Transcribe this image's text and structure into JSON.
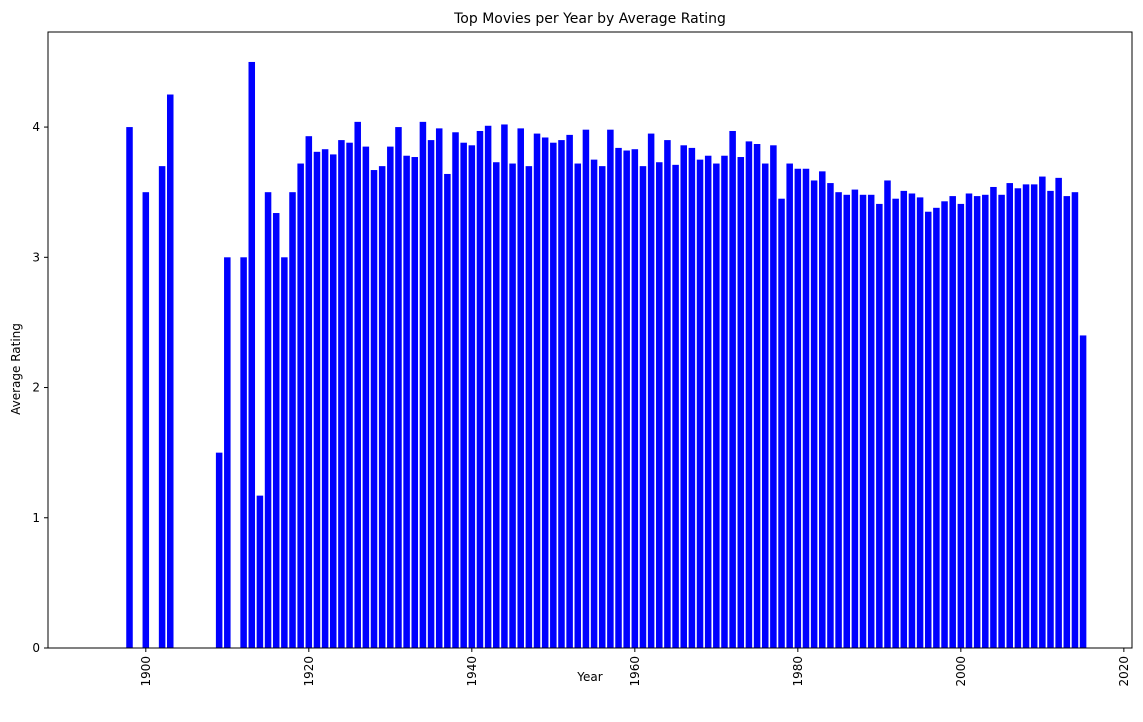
{
  "chart_data": {
    "type": "bar",
    "title": "Top Movies per Year by Average Rating",
    "xlabel": "Year",
    "ylabel": "Average Rating",
    "xlim": [
      1888,
      2021
    ],
    "ylim": [
      0,
      4.73
    ],
    "xticks": [
      1900,
      1920,
      1940,
      1960,
      1980,
      2000,
      2020
    ],
    "yticks": [
      0,
      1,
      2,
      3,
      4
    ],
    "bar_color": "#0000ff",
    "grid": false,
    "x": [
      1898,
      1900,
      1902,
      1903,
      1909,
      1910,
      1912,
      1913,
      1914,
      1915,
      1916,
      1917,
      1918,
      1919,
      1920,
      1921,
      1922,
      1923,
      1924,
      1925,
      1926,
      1927,
      1928,
      1929,
      1930,
      1931,
      1932,
      1933,
      1934,
      1935,
      1936,
      1937,
      1938,
      1939,
      1940,
      1941,
      1942,
      1943,
      1944,
      1945,
      1946,
      1947,
      1948,
      1949,
      1950,
      1951,
      1952,
      1953,
      1954,
      1955,
      1956,
      1957,
      1958,
      1959,
      1960,
      1961,
      1962,
      1963,
      1964,
      1965,
      1966,
      1967,
      1968,
      1969,
      1970,
      1971,
      1972,
      1973,
      1974,
      1975,
      1976,
      1977,
      1978,
      1979,
      1980,
      1981,
      1982,
      1983,
      1984,
      1985,
      1986,
      1987,
      1988,
      1989,
      1990,
      1991,
      1992,
      1993,
      1994,
      1995,
      1996,
      1997,
      1998,
      1999,
      2000,
      2001,
      2002,
      2003,
      2004,
      2005,
      2006,
      2007,
      2008,
      2009,
      2010,
      2011,
      2012,
      2013,
      2014,
      2015
    ],
    "values": [
      4.0,
      3.5,
      3.7,
      4.25,
      1.5,
      3.0,
      3.0,
      4.5,
      1.17,
      3.5,
      3.34,
      3.0,
      3.5,
      3.72,
      3.93,
      3.81,
      3.83,
      3.79,
      3.9,
      3.88,
      4.04,
      3.85,
      3.67,
      3.7,
      3.85,
      4.0,
      3.78,
      3.77,
      4.04,
      3.9,
      3.99,
      3.64,
      3.96,
      3.88,
      3.86,
      3.97,
      4.01,
      3.73,
      4.02,
      3.72,
      3.99,
      3.7,
      3.95,
      3.92,
      3.88,
      3.9,
      3.94,
      3.72,
      3.98,
      3.75,
      3.7,
      3.98,
      3.84,
      3.82,
      3.83,
      3.7,
      3.95,
      3.73,
      3.9,
      3.71,
      3.86,
      3.84,
      3.75,
      3.78,
      3.72,
      3.78,
      3.97,
      3.77,
      3.89,
      3.87,
      3.72,
      3.86,
      3.45,
      3.72,
      3.68,
      3.68,
      3.59,
      3.66,
      3.57,
      3.5,
      3.48,
      3.52,
      3.48,
      3.48,
      3.41,
      3.59,
      3.45,
      3.51,
      3.49,
      3.46,
      3.35,
      3.38,
      3.43,
      3.47,
      3.41,
      3.49,
      3.47,
      3.48,
      3.54,
      3.48,
      3.57,
      3.53,
      3.56,
      3.56,
      3.62,
      3.51,
      3.61,
      3.47,
      3.5,
      2.4
    ]
  }
}
